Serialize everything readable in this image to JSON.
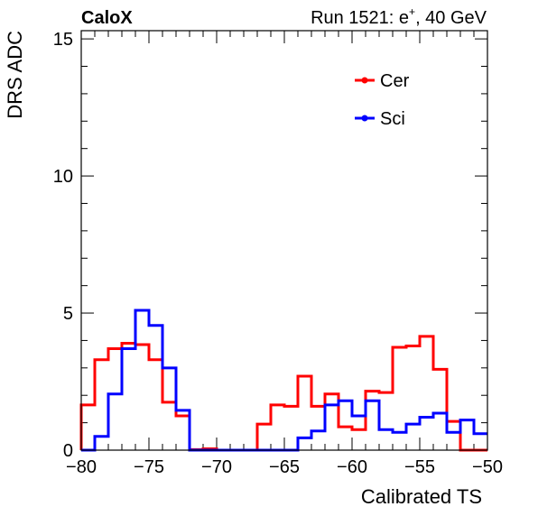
{
  "chart_data": {
    "type": "line",
    "brand": "CaloX",
    "run_prefix": "Run 1521: e",
    "run_sup": "+",
    "run_suffix": ", 40 GeV",
    "xlabel": "Calibrated TS",
    "ylabel": "DRS ADC",
    "xlim": [
      -80,
      -50
    ],
    "ylim": [
      0,
      15.3
    ],
    "x_ticks": [
      -80,
      -75,
      -70,
      -65,
      -60,
      -55,
      -50
    ],
    "x_tick_labels": [
      "−80",
      "−75",
      "−70",
      "−65",
      "−60",
      "−55",
      "−50"
    ],
    "y_ticks": [
      0,
      5,
      10,
      15
    ],
    "y_tick_labels": [
      "0",
      "5",
      "10",
      "15"
    ],
    "grid": false,
    "legend_position": "top-right",
    "bin_edges": [
      -80,
      -79,
      -78,
      -77,
      -76,
      -75,
      -74,
      -73,
      -72,
      -71,
      -70,
      -69,
      -68,
      -67,
      -66,
      -65,
      -64,
      -63,
      -62,
      -61,
      -60,
      -59,
      -58,
      -57,
      -56,
      -55,
      -54,
      -53,
      -52,
      -51,
      -50
    ],
    "series": [
      {
        "name": "Cer",
        "color": "#ff0000",
        "values": [
          1.65,
          3.3,
          3.7,
          3.9,
          3.85,
          3.3,
          1.75,
          1.25,
          0.02,
          0.05,
          0.0,
          0.0,
          0.0,
          0.95,
          1.65,
          1.6,
          2.7,
          1.6,
          2.05,
          0.85,
          0.75,
          2.15,
          2.1,
          3.75,
          3.8,
          4.15,
          2.95,
          1.05,
          0.0,
          0.0
        ]
      },
      {
        "name": "Sci",
        "color": "#0000ff",
        "values": [
          0.0,
          0.5,
          2.05,
          3.7,
          5.1,
          4.55,
          3.0,
          1.45,
          0.0,
          0.0,
          0.0,
          0.0,
          0.0,
          0.0,
          0.0,
          0.0,
          0.45,
          0.7,
          1.65,
          1.8,
          1.25,
          1.8,
          0.75,
          0.65,
          0.95,
          1.2,
          1.35,
          0.65,
          1.1,
          0.6
        ]
      }
    ]
  }
}
